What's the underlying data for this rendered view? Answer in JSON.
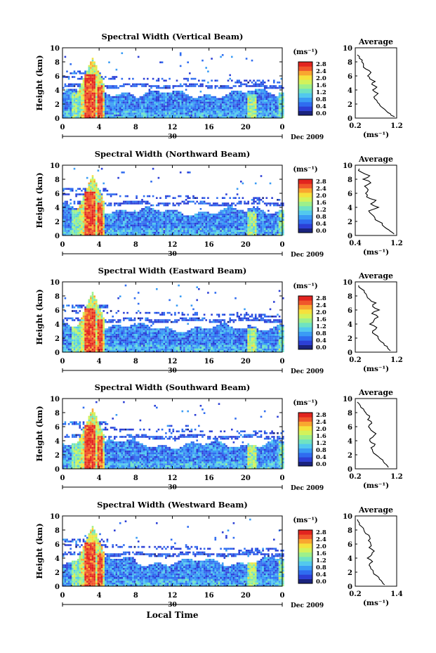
{
  "figure": {
    "xlabel": "Local Time",
    "date_label": "Dec 2009",
    "day_label": "30"
  },
  "colorbar": {
    "unit": "(ms⁻¹)",
    "ticks": [
      "2.8",
      "2.4",
      "2.0",
      "1.6",
      "1.2",
      "0.8",
      "0.4",
      "0.0"
    ],
    "colors": [
      "#1a237e",
      "#2c3fd6",
      "#2f6cf0",
      "#3a9cf5",
      "#52c9ee",
      "#6fe3c2",
      "#9ef08a",
      "#d3f25a",
      "#f5e13c",
      "#f9a630",
      "#f0562a",
      "#e2241f"
    ]
  },
  "chart_data": [
    {
      "type": "heatmap",
      "title": "Spectral Width (Vertical Beam)",
      "ylabel": "Height (km)",
      "xlim": [
        0,
        24
      ],
      "ylim": [
        0,
        10
      ],
      "xticks": [
        "0",
        "4",
        "8",
        "12",
        "16",
        "20",
        "0"
      ],
      "yticks": [
        "0",
        "2",
        "4",
        "6",
        "8",
        "10"
      ],
      "colorbar_range": [
        0.0,
        2.8
      ],
      "profile": {
        "title": "Average",
        "xlabel": "(ms⁻¹)",
        "xlim": [
          0.2,
          1.2
        ],
        "xticks": [
          "0.2",
          "1.2"
        ],
        "yticks": [
          "0",
          "2",
          "4",
          "6",
          "8",
          "10"
        ],
        "height": [
          0.2,
          0.6,
          1.0,
          1.5,
          2.0,
          2.5,
          3.0,
          3.5,
          4.0,
          4.4,
          4.8,
          5.2,
          5.6,
          6.0,
          6.5,
          7.0,
          7.5,
          8.0,
          8.5,
          9.0
        ],
        "width": [
          1.15,
          1.05,
          0.95,
          0.85,
          0.78,
          0.72,
          0.65,
          0.75,
          0.62,
          0.72,
          0.6,
          0.68,
          0.55,
          0.5,
          0.58,
          0.45,
          0.4,
          0.36,
          0.3,
          0.25
        ]
      }
    },
    {
      "type": "heatmap",
      "title": "Spectral Width (Northward Beam)",
      "ylabel": "Height (km)",
      "xlim": [
        0,
        24
      ],
      "ylim": [
        0,
        10
      ],
      "xticks": [
        "0",
        "4",
        "8",
        "12",
        "16",
        "20",
        "0"
      ],
      "yticks": [
        "0",
        "2",
        "4",
        "6",
        "8",
        "10"
      ],
      "colorbar_range": [
        0.0,
        2.8
      ],
      "profile": {
        "title": "Average",
        "xlabel": "(ms⁻¹)",
        "xlim": [
          0.4,
          1.2
        ],
        "xticks": [
          "0.4",
          "1.2"
        ],
        "yticks": [
          "0",
          "2",
          "4",
          "6",
          "8",
          "10"
        ],
        "height": [
          0.2,
          0.6,
          1.0,
          1.5,
          2.0,
          2.5,
          3.0,
          3.5,
          4.0,
          4.5,
          5.0,
          5.5,
          6.0,
          6.5,
          7.0,
          7.5,
          8.0,
          8.5,
          9.0,
          9.5
        ],
        "width": [
          1.15,
          1.08,
          1.0,
          0.92,
          0.85,
          0.78,
          0.72,
          0.66,
          0.85,
          0.7,
          0.8,
          0.62,
          0.6,
          0.65,
          0.58,
          0.7,
          0.55,
          0.68,
          0.52,
          0.48
        ]
      }
    },
    {
      "type": "heatmap",
      "title": "Spectral Width (Eastward Beam)",
      "ylabel": "Height (km)",
      "xlim": [
        0,
        24
      ],
      "ylim": [
        0,
        10
      ],
      "xticks": [
        "0",
        "4",
        "8",
        "12",
        "16",
        "20",
        "0"
      ],
      "yticks": [
        "0",
        "2",
        "4",
        "6",
        "8",
        "10"
      ],
      "colorbar_range": [
        0.0,
        2.8
      ],
      "profile": {
        "title": "Average",
        "xlabel": "(ms⁻¹)",
        "xlim": [
          0.2,
          1.2
        ],
        "xticks": [
          "0.2",
          "1.2"
        ],
        "yticks": [
          "0",
          "2",
          "4",
          "6",
          "8",
          "10"
        ],
        "height": [
          0.2,
          0.6,
          1.0,
          1.5,
          2.0,
          2.5,
          3.0,
          3.5,
          4.0,
          4.5,
          5.0,
          5.5,
          6.0,
          6.5,
          7.0,
          7.5,
          8.0,
          8.5,
          9.0,
          9.5
        ],
        "width": [
          1.05,
          0.98,
          0.9,
          0.82,
          0.75,
          0.68,
          0.62,
          0.72,
          0.55,
          0.65,
          0.75,
          0.6,
          0.78,
          0.62,
          0.7,
          0.55,
          0.48,
          0.42,
          0.35,
          0.28
        ]
      }
    },
    {
      "type": "heatmap",
      "title": "Spectral Width (Southward Beam)",
      "ylabel": "Height (km)",
      "xlim": [
        0,
        24
      ],
      "ylim": [
        0,
        10
      ],
      "xticks": [
        "0",
        "4",
        "8",
        "12",
        "16",
        "20",
        "0"
      ],
      "yticks": [
        "0",
        "2",
        "4",
        "6",
        "8",
        "10"
      ],
      "colorbar_range": [
        0.0,
        2.8
      ],
      "profile": {
        "title": "Average",
        "xlabel": "(ms⁻¹)",
        "xlim": [
          0.2,
          1.2
        ],
        "xticks": [
          "0.2",
          "1.2"
        ],
        "yticks": [
          "0",
          "2",
          "4",
          "6",
          "8",
          "10"
        ],
        "height": [
          0.2,
          0.6,
          1.0,
          1.5,
          2.0,
          2.5,
          3.0,
          3.5,
          4.0,
          4.5,
          5.0,
          5.5,
          6.0,
          6.5,
          7.0,
          7.5,
          8.0,
          8.5,
          9.0,
          9.5
        ],
        "width": [
          1.0,
          0.95,
          0.88,
          0.8,
          0.7,
          0.62,
          0.58,
          0.68,
          0.55,
          0.62,
          0.7,
          0.58,
          0.52,
          0.6,
          0.5,
          0.55,
          0.45,
          0.4,
          0.32,
          0.25
        ]
      }
    },
    {
      "type": "heatmap",
      "title": "Spectral Width (Westward Beam)",
      "ylabel": "Height (km)",
      "xlim": [
        0,
        24
      ],
      "ylim": [
        0,
        10
      ],
      "xticks": [
        "0",
        "4",
        "8",
        "12",
        "16",
        "20",
        "0"
      ],
      "yticks": [
        "0",
        "2",
        "4",
        "6",
        "8",
        "10"
      ],
      "colorbar_range": [
        0.0,
        2.8
      ],
      "profile": {
        "title": "Average",
        "xlabel": "(ms⁻¹)",
        "xlim": [
          0.2,
          1.4
        ],
        "xticks": [
          "0.2",
          "1.4"
        ],
        "yticks": [
          "0",
          "2",
          "4",
          "6",
          "8",
          "10"
        ],
        "height": [
          0.2,
          0.6,
          1.0,
          1.5,
          2.0,
          2.5,
          3.0,
          3.5,
          4.0,
          4.5,
          5.0,
          5.5,
          6.0,
          6.5,
          7.0,
          7.5,
          8.0,
          8.5,
          9.0,
          9.5
        ],
        "width": [
          1.05,
          0.98,
          0.9,
          0.82,
          0.72,
          0.65,
          0.6,
          0.7,
          0.55,
          0.68,
          0.75,
          0.6,
          0.65,
          0.58,
          0.62,
          0.5,
          0.45,
          0.38,
          0.32,
          0.26
        ]
      }
    }
  ]
}
